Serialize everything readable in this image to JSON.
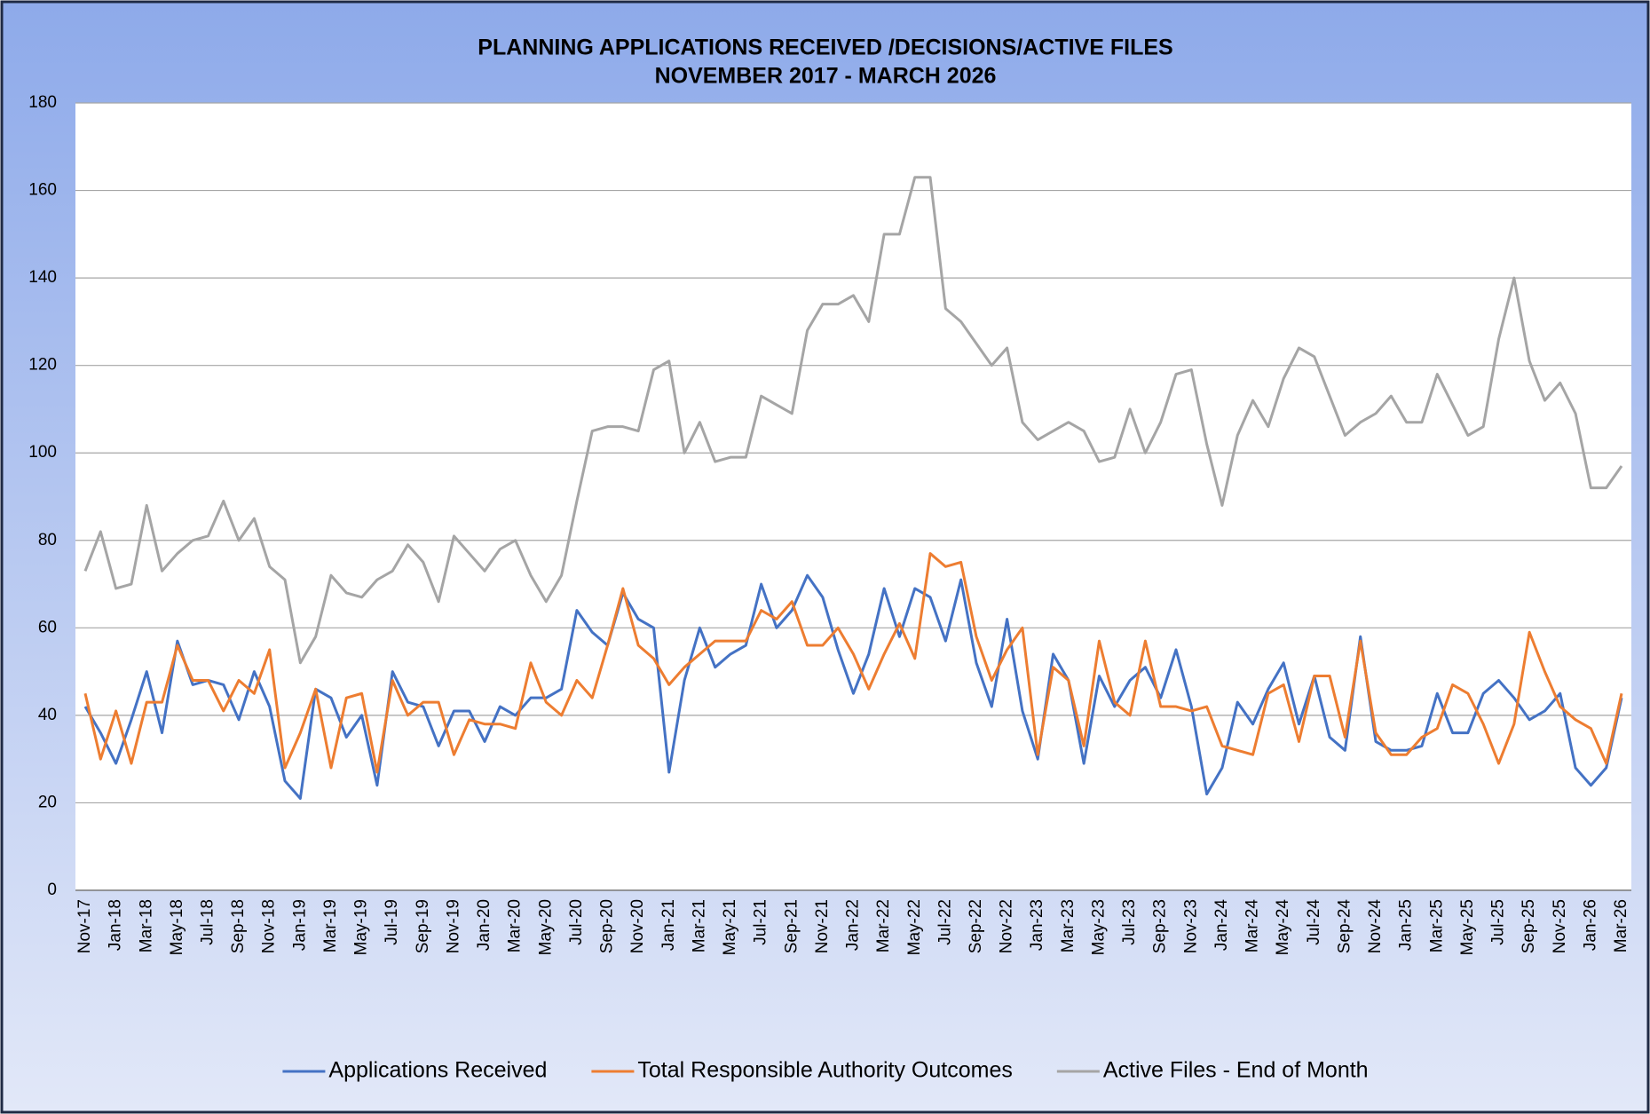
{
  "chart_data": {
    "type": "line",
    "title": "PLANNING APPLICATIONS RECEIVED /DECISIONS/ACTIVE FILES",
    "subtitle": "NOVEMBER 2017 - MARCH 2026",
    "categories": [
      "Nov-17",
      null,
      "Jan-18",
      null,
      "Mar-18",
      null,
      "May-18",
      null,
      "Jul-18",
      null,
      "Sep-18",
      null,
      "Nov-18",
      null,
      "Jan-19",
      null,
      "Mar-19",
      null,
      "May-19",
      null,
      "Jul-19",
      null,
      "Sep-19",
      null,
      "Nov-19",
      null,
      "Jan-20",
      null,
      "Mar-20",
      null,
      "May-20",
      null,
      "Jul-20",
      null,
      "Sep-20",
      null,
      "Nov-20",
      null,
      "Jan-21",
      null,
      "Mar-21",
      null,
      "May-21",
      null,
      "Jul-21",
      null,
      "Sep-21",
      null,
      "Nov-21",
      null,
      "Jan-22",
      null,
      "Mar-22",
      null,
      "May-22",
      null,
      "Jul-22",
      null,
      "Sep-22",
      null,
      "Nov-22",
      null,
      "Jan-23",
      null,
      "Mar-23",
      null,
      "May-23",
      null,
      "Jul-23",
      null,
      "Sep-23",
      null,
      "Nov-23",
      null,
      "Jan-24",
      null,
      "Mar-24",
      null,
      "May-24",
      null,
      "Jul-24",
      null,
      "Sep-24",
      null,
      "Nov-24",
      null,
      "Jan-25",
      null,
      "Mar-25",
      null,
      "May-25",
      null,
      "Jul-25",
      null,
      "Sep-25",
      null,
      "Nov-25",
      null,
      "Jan-26",
      null,
      "Mar-26"
    ],
    "series": [
      {
        "name": "Applications Received",
        "color": "#4472c4",
        "values": [
          42,
          36,
          29,
          39,
          50,
          36,
          57,
          47,
          48,
          47,
          39,
          50,
          42,
          25,
          21,
          46,
          44,
          35,
          40,
          24,
          50,
          43,
          42,
          33,
          41,
          41,
          34,
          42,
          40,
          44,
          44,
          46,
          64,
          59,
          56,
          68,
          62,
          60,
          27,
          48,
          60,
          51,
          54,
          56,
          70,
          60,
          64,
          72,
          67,
          55,
          45,
          54,
          69,
          58,
          69,
          67,
          57,
          71,
          52,
          42,
          62,
          41,
          30,
          54,
          48,
          29,
          49,
          42,
          48,
          51,
          44,
          55,
          42,
          22,
          28,
          43,
          38,
          46,
          52,
          38,
          49,
          35,
          32,
          58,
          34,
          32,
          32,
          33,
          45,
          36,
          36,
          45,
          48,
          44,
          39,
          41,
          45,
          28,
          24,
          28,
          44
        ]
      },
      {
        "name": "Total Responsible Authority Outcomes",
        "color": "#ed7d31",
        "values": [
          45,
          30,
          41,
          29,
          43,
          43,
          56,
          48,
          48,
          41,
          48,
          45,
          55,
          28,
          36,
          46,
          28,
          44,
          45,
          27,
          48,
          40,
          43,
          43,
          31,
          39,
          38,
          38,
          37,
          52,
          43,
          40,
          48,
          44,
          56,
          69,
          56,
          53,
          47,
          51,
          54,
          57,
          57,
          57,
          64,
          62,
          66,
          56,
          56,
          60,
          54,
          46,
          54,
          61,
          53,
          77,
          74,
          75,
          58,
          48,
          55,
          60,
          31,
          51,
          48,
          33,
          57,
          43,
          40,
          57,
          42,
          42,
          41,
          42,
          33,
          32,
          31,
          45,
          47,
          34,
          49,
          49,
          35,
          57,
          36,
          31,
          31,
          35,
          37,
          47,
          45,
          38,
          29,
          38,
          59,
          50,
          42,
          39,
          37,
          29,
          45
        ]
      },
      {
        "name": "Active Files - End of Month",
        "color": "#a5a5a5",
        "values": [
          73,
          82,
          69,
          70,
          88,
          73,
          77,
          80,
          81,
          89,
          80,
          85,
          74,
          71,
          52,
          58,
          72,
          68,
          67,
          71,
          73,
          79,
          75,
          66,
          81,
          77,
          73,
          78,
          80,
          72,
          66,
          72,
          89,
          105,
          106,
          106,
          105,
          119,
          121,
          100,
          107,
          98,
          99,
          99,
          113,
          111,
          109,
          128,
          134,
          134,
          136,
          130,
          150,
          150,
          163,
          163,
          133,
          130,
          125,
          120,
          124,
          107,
          103,
          105,
          107,
          105,
          98,
          99,
          110,
          100,
          107,
          118,
          119,
          102,
          88,
          104,
          112,
          106,
          117,
          124,
          122,
          113,
          104,
          107,
          109,
          113,
          107,
          107,
          118,
          111,
          104,
          106,
          126,
          140,
          121,
          112,
          116,
          109,
          92,
          92,
          97
        ]
      }
    ],
    "ylim": [
      0,
      180
    ],
    "yticks": [
      0,
      20,
      40,
      60,
      80,
      100,
      120,
      140,
      160,
      180
    ],
    "grid": true,
    "legend": "bottom"
  }
}
